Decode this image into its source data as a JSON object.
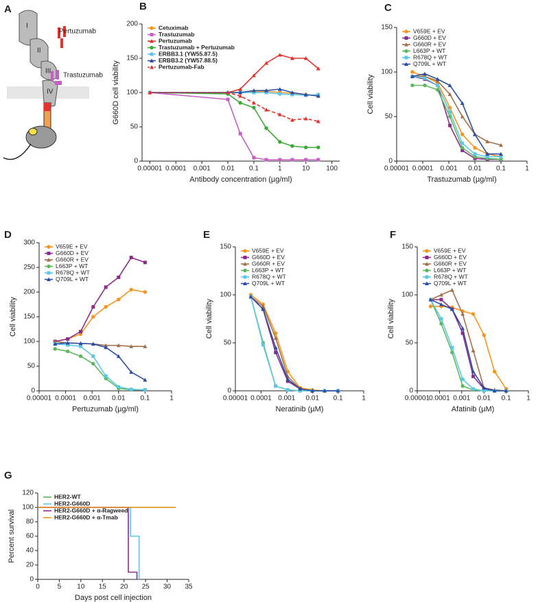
{
  "diagram": {
    "panel": "A",
    "labels": [
      "Pertuzumab",
      "Trastuzumab",
      "I",
      "II",
      "III",
      "IV"
    ]
  },
  "chart_data": [
    {
      "type": "line",
      "panel": "B",
      "xlabel": "Antibody concentration (µg/ml)",
      "ylabel": "G660D cell viability",
      "xscale": "log",
      "xlim": [
        5e-06,
        200
      ],
      "xticks": [
        1e-05,
        0.0001,
        0.001,
        0.01,
        0.1,
        1,
        10,
        100
      ],
      "ylim": [
        0,
        200
      ],
      "yticks": [
        0,
        50,
        100,
        150,
        200
      ],
      "legend": "upper left",
      "x": [
        1e-05,
        0.01,
        0.03,
        0.1,
        0.3,
        1,
        3,
        10,
        30
      ],
      "series": [
        {
          "name": "Cetuximab",
          "color": "#f7941d",
          "values": [
            100,
            100,
            100,
            101,
            102,
            100,
            99,
            97,
            95
          ]
        },
        {
          "name": "Trastuzumab",
          "color": "#c55fc5",
          "values": [
            100,
            90,
            40,
            5,
            2,
            2,
            2,
            2,
            2
          ]
        },
        {
          "name": "Pertuzumab",
          "color": "#e4322b",
          "values": [
            100,
            100,
            105,
            125,
            143,
            155,
            150,
            150,
            135
          ]
        },
        {
          "name": "Trastuzumab + Pertuzumab",
          "color": "#3aaa35",
          "values": [
            100,
            98,
            85,
            78,
            48,
            28,
            22,
            20,
            20
          ]
        },
        {
          "name": "ERBB3.1 (YW55.87.5)",
          "color": "#5bc8e8",
          "values": [
            100,
            100,
            100,
            100,
            100,
            98,
            97,
            96,
            97
          ]
        },
        {
          "name": "ERBB3.2 (YW57.88.5)",
          "color": "#2b4ea2",
          "values": [
            100,
            100,
            100,
            103,
            103,
            105,
            100,
            97,
            95
          ]
        },
        {
          "name": "Pertuzumab-Fab",
          "color": "#e4322b",
          "dashed": true,
          "values": [
            100,
            100,
            95,
            85,
            75,
            68,
            60,
            62,
            58
          ]
        }
      ]
    },
    {
      "type": "line",
      "panel": "C",
      "xlabel": "Trastuzumab (µg/ml)",
      "ylabel": "Cell viability",
      "xscale": "log",
      "xlim": [
        1e-05,
        1
      ],
      "xticks": [
        1e-05,
        0.0001,
        0.001,
        0.01,
        0.1,
        1
      ],
      "ylim": [
        0,
        150
      ],
      "yticks": [
        0,
        50,
        100,
        150
      ],
      "legend": "upper left",
      "x": [
        4e-05,
        0.00012,
        0.00037,
        0.0011,
        0.0033,
        0.01,
        0.03,
        0.1
      ],
      "series": [
        {
          "name": "V659E + EV",
          "color": "#f7941d",
          "values": [
            100,
            95,
            88,
            60,
            30,
            15,
            8,
            5
          ]
        },
        {
          "name": "G660D + EV",
          "color": "#8b2b8e",
          "values": [
            95,
            92,
            85,
            40,
            12,
            3,
            2,
            2
          ]
        },
        {
          "name": "G660R + EV",
          "color": "#a0704a",
          "values": [
            95,
            95,
            90,
            75,
            50,
            30,
            22,
            18
          ]
        },
        {
          "name": "L663P + WT",
          "color": "#5cb85c",
          "values": [
            85,
            85,
            80,
            50,
            15,
            5,
            3,
            2
          ]
        },
        {
          "name": "R678Q + WT",
          "color": "#5bc8e8",
          "values": [
            95,
            93,
            85,
            55,
            20,
            8,
            5,
            5
          ]
        },
        {
          "name": "Q709L + WT",
          "color": "#2b4ea2",
          "values": [
            95,
            98,
            92,
            85,
            65,
            30,
            8,
            8
          ]
        }
      ]
    },
    {
      "type": "line",
      "panel": "D",
      "xlabel": "Pertuzumab (µg/ml)",
      "ylabel": "Cell viability",
      "xscale": "log",
      "xlim": [
        1e-05,
        1
      ],
      "xticks": [
        1e-05,
        0.0001,
        0.001,
        0.01,
        0.1,
        1
      ],
      "ylim": [
        0,
        300
      ],
      "yticks": [
        0,
        50,
        100,
        150,
        200,
        250,
        300
      ],
      "legend": "upper left",
      "x": [
        4e-05,
        0.00012,
        0.00037,
        0.0011,
        0.0033,
        0.01,
        0.03,
        0.1
      ],
      "series": [
        {
          "name": "V659E + EV",
          "color": "#f7941d",
          "values": [
            100,
            105,
            115,
            150,
            170,
            185,
            205,
            200
          ]
        },
        {
          "name": "G660D + EV",
          "color": "#8b2b8e",
          "values": [
            100,
            105,
            120,
            170,
            210,
            230,
            270,
            260
          ]
        },
        {
          "name": "G660R + EV",
          "color": "#a0704a",
          "values": [
            100,
            97,
            96,
            95,
            92,
            92,
            90,
            90
          ]
        },
        {
          "name": "L663P + WT",
          "color": "#5cb85c",
          "values": [
            85,
            80,
            70,
            55,
            25,
            5,
            2,
            2
          ]
        },
        {
          "name": "R678Q + WT",
          "color": "#5bc8e8",
          "values": [
            95,
            93,
            90,
            70,
            30,
            8,
            3,
            2
          ]
        },
        {
          "name": "Q709L + WT",
          "color": "#2b4ea2",
          "values": [
            95,
            97,
            96,
            95,
            88,
            70,
            38,
            22
          ]
        }
      ]
    },
    {
      "type": "line",
      "panel": "E",
      "xlabel": "Neratinib (µM)",
      "ylabel": "Cell viability",
      "xscale": "log",
      "xlim": [
        1e-05,
        1
      ],
      "xticks": [
        1e-05,
        0.0001,
        0.001,
        0.01,
        0.1,
        1
      ],
      "ylim": [
        0,
        150
      ],
      "yticks": [
        0,
        50,
        100,
        150
      ],
      "legend": "upper left",
      "x": [
        4e-05,
        0.00012,
        0.00037,
        0.0011,
        0.0033,
        0.01,
        0.03,
        0.1
      ],
      "series": [
        {
          "name": "V659E + EV",
          "color": "#f7941d",
          "values": [
            100,
            90,
            60,
            20,
            3,
            1,
            0,
            0
          ]
        },
        {
          "name": "G660D + EV",
          "color": "#8b2b8e",
          "values": [
            98,
            85,
            40,
            10,
            2,
            0,
            0,
            0
          ]
        },
        {
          "name": "G660R + EV",
          "color": "#a0704a",
          "values": [
            98,
            88,
            55,
            15,
            2,
            0,
            0,
            0
          ]
        },
        {
          "name": "L663P + WT",
          "color": "#5cb85c",
          "values": [
            98,
            50,
            5,
            1,
            0,
            0,
            0,
            0
          ]
        },
        {
          "name": "R678Q + WT",
          "color": "#5bc8e8",
          "values": [
            98,
            48,
            5,
            1,
            0,
            0,
            0,
            0
          ]
        },
        {
          "name": "Q709L + WT",
          "color": "#2b4ea2",
          "values": [
            98,
            85,
            45,
            12,
            2,
            0,
            0,
            0
          ]
        }
      ]
    },
    {
      "type": "line",
      "panel": "F",
      "xlabel": "Afatinib (µM)",
      "ylabel": "Cell viability",
      "xscale": "log",
      "xlim": [
        1e-05,
        1
      ],
      "xticks": [
        1e-05,
        0.0001,
        0.001,
        0.01,
        0.1,
        1
      ],
      "ylim": [
        0,
        150
      ],
      "yticks": [
        0,
        50,
        100,
        150
      ],
      "legend": "upper left",
      "x": [
        4e-05,
        0.00012,
        0.00037,
        0.0011,
        0.0033,
        0.01,
        0.03,
        0.1
      ],
      "series": [
        {
          "name": "V659E + EV",
          "color": "#f7941d",
          "values": [
            88,
            88,
            87,
            83,
            80,
            58,
            20,
            2
          ]
        },
        {
          "name": "G660D + EV",
          "color": "#8b2b8e",
          "values": [
            95,
            95,
            85,
            60,
            15,
            2,
            0,
            0
          ]
        },
        {
          "name": "G660R + EV",
          "color": "#a0704a",
          "values": [
            95,
            100,
            105,
            80,
            42,
            3,
            1,
            0
          ]
        },
        {
          "name": "L663P + WT",
          "color": "#5cb85c",
          "values": [
            95,
            70,
            40,
            5,
            1,
            0,
            0,
            0
          ]
        },
        {
          "name": "R678Q + WT",
          "color": "#5bc8e8",
          "values": [
            95,
            75,
            45,
            12,
            2,
            0,
            0,
            0
          ]
        },
        {
          "name": "Q709L + WT",
          "color": "#2b4ea2",
          "values": [
            95,
            90,
            85,
            65,
            20,
            3,
            0,
            0
          ]
        }
      ]
    },
    {
      "type": "step",
      "panel": "G",
      "xlabel": "Days post cell injection",
      "ylabel": "Percent survival",
      "xlim": [
        0,
        35
      ],
      "xticks": [
        0,
        5,
        10,
        15,
        20,
        25,
        30,
        35
      ],
      "ylim": [
        0,
        120
      ],
      "yticks": [
        0,
        20,
        40,
        60,
        80,
        100,
        120
      ],
      "legend": "upper left",
      "series": [
        {
          "name": "HER2-WT",
          "color": "#5cb85c",
          "x": [
            0,
            32
          ],
          "values": [
            100,
            100
          ]
        },
        {
          "name": "HER2-G660D",
          "color": "#5bc8e8",
          "x": [
            0,
            21.5,
            23.5
          ],
          "values": [
            100,
            60,
            0
          ]
        },
        {
          "name": "HER2-G660D + α-Ragweed",
          "color": "#8b2b8e",
          "x": [
            0,
            21,
            23
          ],
          "values": [
            100,
            10,
            0
          ]
        },
        {
          "name": "HER2-G660D + α-Tmab",
          "color": "#f7941d",
          "x": [
            0,
            32
          ],
          "values": [
            100,
            100
          ]
        }
      ]
    }
  ]
}
